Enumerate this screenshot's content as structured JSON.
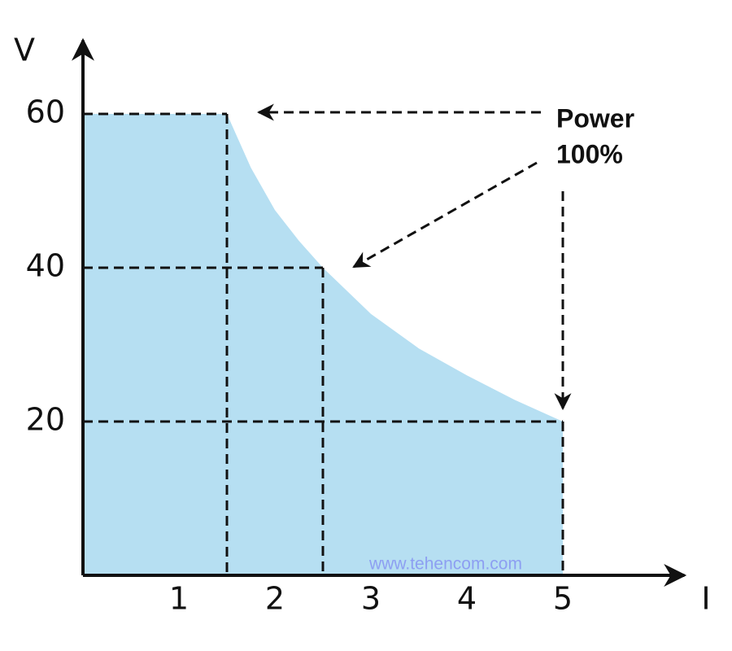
{
  "chart_data": {
    "type": "area",
    "x_label": "I",
    "y_label": "V",
    "x": [
      0,
      1.5,
      1.75,
      2,
      2.25,
      2.5,
      3,
      3.5,
      4,
      4.5,
      5
    ],
    "values": [
      60,
      60,
      53,
      47.5,
      43.5,
      40,
      34,
      29.5,
      26,
      22.8,
      20
    ],
    "color": "#b6dff2",
    "guides": [
      {
        "x": 1.5,
        "y": 60
      },
      {
        "x": 2.5,
        "y": 40
      },
      {
        "x": 5,
        "y": 20
      }
    ],
    "xlim": [
      0,
      6.3
    ],
    "ylim": [
      0,
      70
    ],
    "xticks": [
      1,
      2,
      3,
      4,
      5
    ],
    "yticks": [
      20,
      40,
      60
    ],
    "annotation": [
      "Power",
      "100%"
    ],
    "watermark": "www.tehencom.com"
  }
}
